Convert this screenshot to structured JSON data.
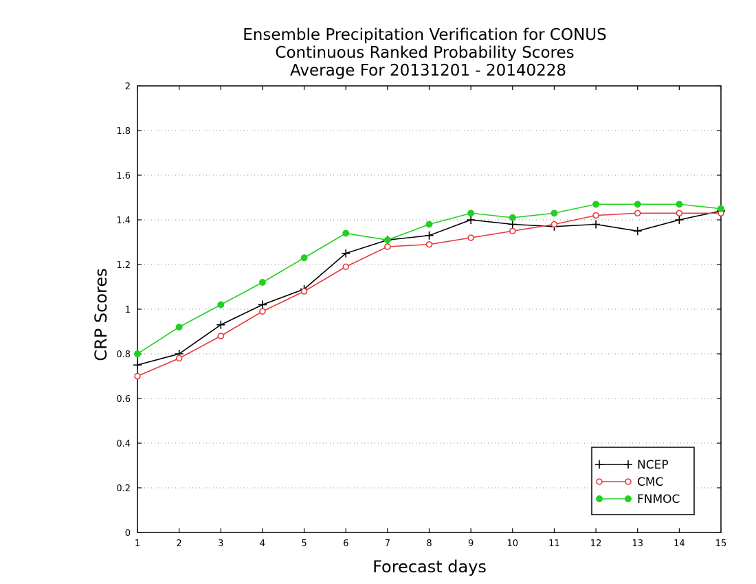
{
  "chart_data": {
    "type": "line",
    "title_lines": [
      "Ensemble Precipitation Verification for CONUS",
      "Continuous Ranked Probability Scores",
      "Average For 20131201 - 20140228"
    ],
    "xlabel": "Forecast days",
    "ylabel": "CRP Scores",
    "x": [
      1,
      2,
      3,
      4,
      5,
      6,
      7,
      8,
      9,
      10,
      11,
      12,
      13,
      14,
      15
    ],
    "xlim": [
      1,
      15
    ],
    "ylim": [
      0,
      2
    ],
    "yticks": [
      0,
      0.2,
      0.4,
      0.6,
      0.8,
      1,
      1.2,
      1.4,
      1.6,
      1.8,
      2
    ],
    "ytick_labels": [
      "0",
      "0.2",
      "0.4",
      "0.6",
      "0.8",
      "1",
      "1.2",
      "1.4",
      "1.6",
      "1.8",
      "2"
    ],
    "xtick_labels": [
      "1",
      "2",
      "3",
      "4",
      "5",
      "6",
      "7",
      "8",
      "9",
      "10",
      "11",
      "12",
      "13",
      "14",
      "15"
    ],
    "grid": "horizontal dotted",
    "legend_position": "bottom-right",
    "series": [
      {
        "name": "NCEP",
        "color": "#000000",
        "marker": "plus",
        "values": [
          0.75,
          0.8,
          0.93,
          1.02,
          1.09,
          1.25,
          1.31,
          1.33,
          1.4,
          1.38,
          1.37,
          1.38,
          1.35,
          1.4,
          1.44
        ]
      },
      {
        "name": "CMC",
        "color": "#e8383d",
        "marker": "open-circle",
        "values": [
          0.7,
          0.78,
          0.88,
          0.99,
          1.08,
          1.19,
          1.28,
          1.29,
          1.32,
          1.35,
          1.38,
          1.42,
          1.43,
          1.43,
          1.43
        ]
      },
      {
        "name": "FNMOC",
        "color": "#22d022",
        "marker": "filled-circle",
        "values": [
          0.8,
          0.92,
          1.02,
          1.12,
          1.23,
          1.34,
          1.31,
          1.38,
          1.43,
          1.41,
          1.43,
          1.47,
          1.47,
          1.47,
          1.45
        ]
      }
    ]
  }
}
